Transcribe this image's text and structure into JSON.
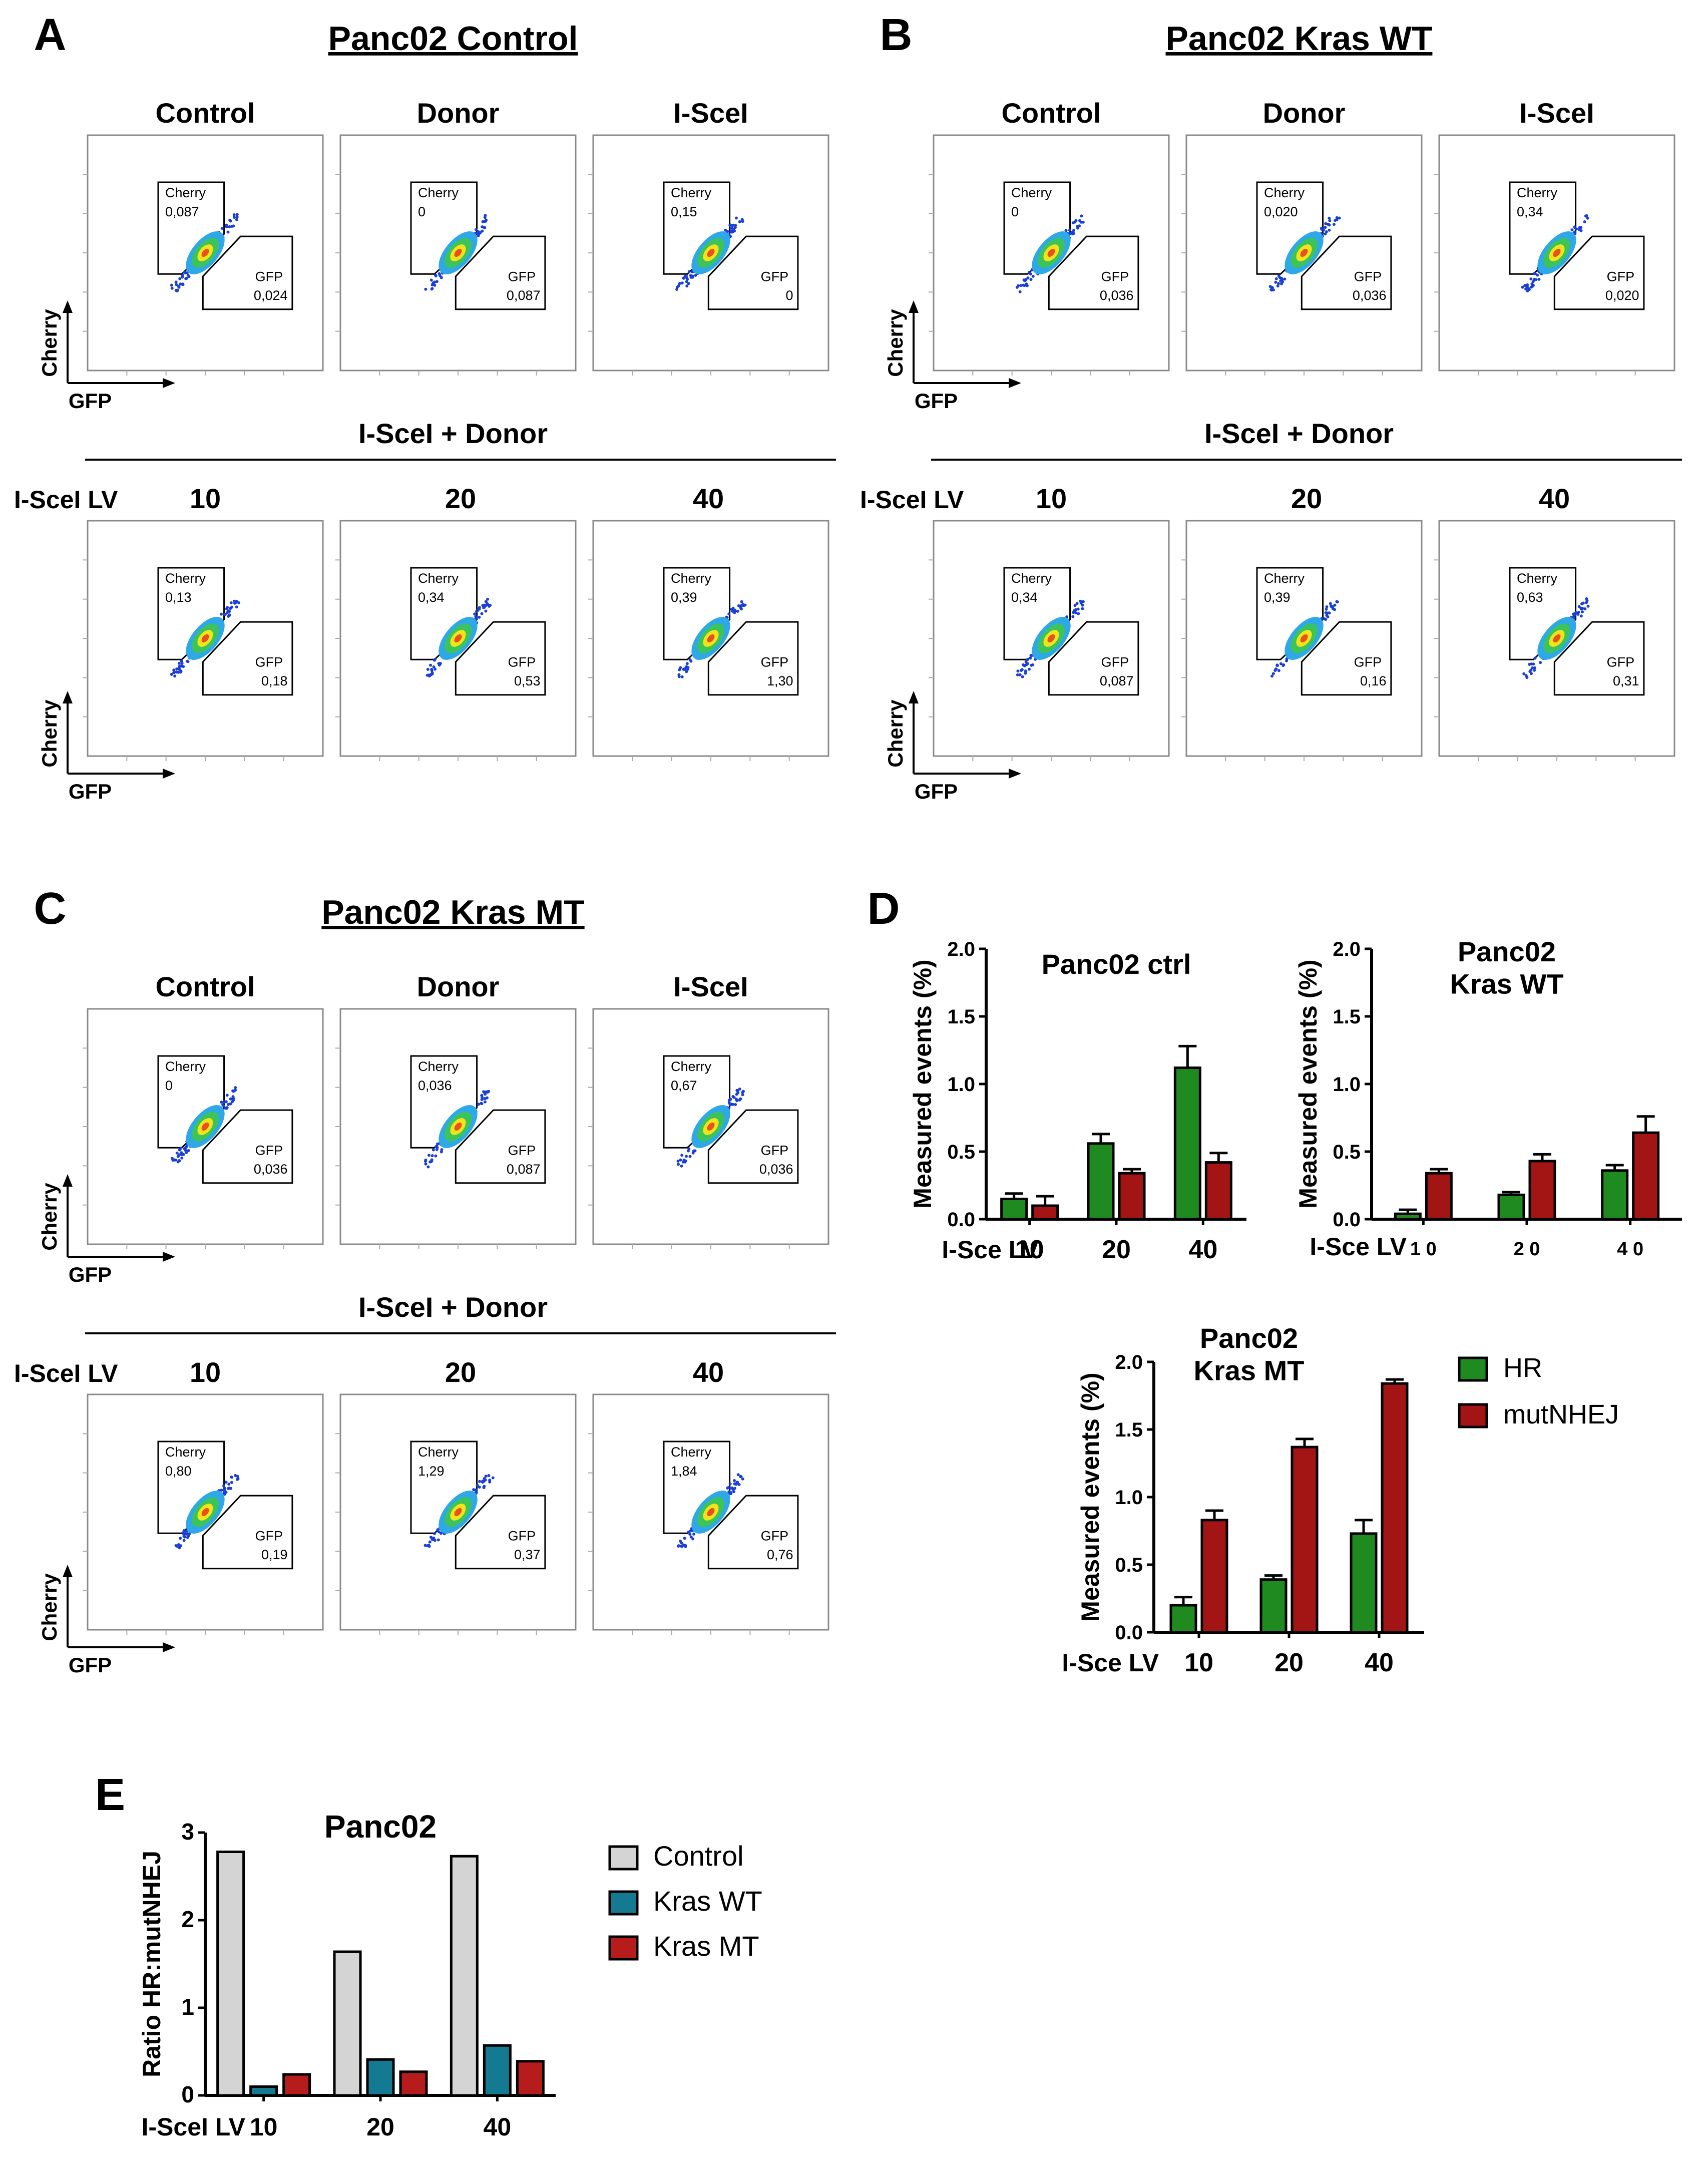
{
  "colors": {
    "hr": "#1f8a1f",
    "mutnhej": "#a31515",
    "control": "#d4d4d4",
    "kras_wt": "#137a91",
    "kras_mt": "#b71c1c",
    "ink": "#000000"
  },
  "axes_common": {
    "ylabel": "Cherry",
    "xlabel": "GFP",
    "row2_heading": "I-SceI + Donor",
    "lv_label": "I-SceI LV",
    "gate_cherry": "Cherry",
    "gate_gfp": "GFP"
  },
  "panels": [
    {
      "letter": "A",
      "title": "Panc02 Control",
      "row1_labels": [
        "Control",
        "Donor",
        "I-SceI"
      ],
      "row2_labels": [
        "10",
        "20",
        "40"
      ],
      "row1": [
        {
          "cherry": "0,087",
          "gfp": "0,024"
        },
        {
          "cherry": "0",
          "gfp": "0,087"
        },
        {
          "cherry": "0,15",
          "gfp": "0"
        }
      ],
      "row2": [
        {
          "cherry": "0,13",
          "gfp": "0,18"
        },
        {
          "cherry": "0,34",
          "gfp": "0,53"
        },
        {
          "cherry": "0,39",
          "gfp": "1,30"
        }
      ]
    },
    {
      "letter": "B",
      "title": "Panc02 Kras WT",
      "row1_labels": [
        "Control",
        "Donor",
        "I-SceI"
      ],
      "row2_labels": [
        "10",
        "20",
        "40"
      ],
      "row1": [
        {
          "cherry": "0",
          "gfp": "0,036"
        },
        {
          "cherry": "0,020",
          "gfp": "0,036"
        },
        {
          "cherry": "0,34",
          "gfp": "0,020"
        }
      ],
      "row2": [
        {
          "cherry": "0,34",
          "gfp": "0,087"
        },
        {
          "cherry": "0,39",
          "gfp": "0,16"
        },
        {
          "cherry": "0,63",
          "gfp": "0,31"
        }
      ]
    },
    {
      "letter": "C",
      "title": "Panc02 Kras MT",
      "row1_labels": [
        "Control",
        "Donor",
        "I-SceI"
      ],
      "row2_labels": [
        "10",
        "20",
        "40"
      ],
      "row1": [
        {
          "cherry": "0",
          "gfp": "0,036"
        },
        {
          "cherry": "0,036",
          "gfp": "0,087"
        },
        {
          "cherry": "0,67",
          "gfp": "0,036"
        }
      ],
      "row2": [
        {
          "cherry": "0,80",
          "gfp": "0,19"
        },
        {
          "cherry": "1,29",
          "gfp": "0,37"
        },
        {
          "cherry": "1,84",
          "gfp": "0,76"
        }
      ]
    }
  ],
  "panel_d": {
    "letter": "D",
    "legend": [
      "HR",
      "mutNHEJ"
    ]
  },
  "panel_e": {
    "letter": "E"
  },
  "chart_data": [
    {
      "type": "bar",
      "title": "Panc02 ctrl",
      "xlabel": "I-Sce LV",
      "ylabel": "Measured events (%)",
      "ylim": [
        0,
        2.0
      ],
      "yticks": [
        "0.0",
        "0.5",
        "1.0",
        "1.5",
        "2.0"
      ],
      "categories": [
        "10",
        "20",
        "40"
      ],
      "series": [
        {
          "name": "HR",
          "values": [
            0.15,
            0.56,
            1.12
          ],
          "errors": [
            0.04,
            0.07,
            0.16
          ]
        },
        {
          "name": "mutNHEJ",
          "values": [
            0.1,
            0.34,
            0.42
          ],
          "errors": [
            0.07,
            0.03,
            0.07
          ]
        }
      ]
    },
    {
      "type": "bar",
      "title": "Panc02 Kras WT",
      "xlabel": "I-Sce LV",
      "ylabel": "Measured events (%)",
      "ylim": [
        0,
        2.0
      ],
      "yticks": [
        "0.0",
        "0.5",
        "1.0",
        "1.5",
        "2.0"
      ],
      "categories": [
        "1 0",
        "2 0",
        "4 0"
      ],
      "series": [
        {
          "name": "HR",
          "values": [
            0.04,
            0.18,
            0.36
          ],
          "errors": [
            0.03,
            0.02,
            0.04
          ]
        },
        {
          "name": "mutNHEJ",
          "values": [
            0.34,
            0.43,
            0.64
          ],
          "errors": [
            0.03,
            0.05,
            0.12
          ]
        }
      ]
    },
    {
      "type": "bar",
      "title": "Panc02 Kras MT",
      "xlabel": "I-Sce LV",
      "ylabel": "Measured events (%)",
      "ylim": [
        0,
        2.0
      ],
      "yticks": [
        "0.0",
        "0.5",
        "1.0",
        "1.5",
        "2.0"
      ],
      "categories": [
        "10",
        "20",
        "40"
      ],
      "series": [
        {
          "name": "HR",
          "values": [
            0.2,
            0.39,
            0.73
          ],
          "errors": [
            0.06,
            0.03,
            0.1
          ]
        },
        {
          "name": "mutNHEJ",
          "values": [
            0.83,
            1.37,
            1.84
          ],
          "errors": [
            0.07,
            0.06,
            0.03
          ]
        }
      ]
    },
    {
      "type": "bar",
      "title": "Panc02",
      "xlabel": "I-SceI LV",
      "ylabel": "Ratio HR:mutNHEJ",
      "ylim": [
        0,
        3
      ],
      "yticks": [
        "0",
        "1",
        "2",
        "3"
      ],
      "categories": [
        "10",
        "20",
        "40"
      ],
      "legend": [
        "Control",
        "Kras WT",
        "Kras MT"
      ],
      "series": [
        {
          "name": "Control",
          "values": [
            2.78,
            1.64,
            2.73
          ]
        },
        {
          "name": "Kras WT",
          "values": [
            0.1,
            0.41,
            0.57
          ]
        },
        {
          "name": "Kras MT",
          "values": [
            0.24,
            0.27,
            0.39
          ]
        }
      ]
    }
  ]
}
